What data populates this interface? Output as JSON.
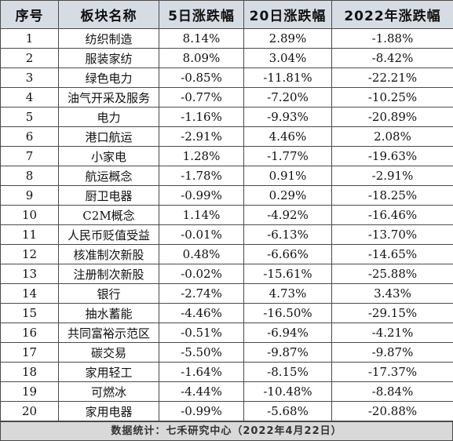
{
  "table": {
    "headers": [
      "序号",
      "板块名称",
      "5日涨跌幅",
      "20日涨跌幅",
      "2022年涨跌幅"
    ],
    "rows": [
      [
        "1",
        "纺织制造",
        "8.14%",
        "2.89%",
        "-1.88%"
      ],
      [
        "2",
        "服装家纺",
        "8.09%",
        "3.04%",
        "-8.42%"
      ],
      [
        "3",
        "绿色电力",
        "-0.85%",
        "-11.81%",
        "-22.21%"
      ],
      [
        "4",
        "油气开采及服务",
        "-0.77%",
        "-7.20%",
        "-10.25%"
      ],
      [
        "5",
        "电力",
        "-1.16%",
        "-9.93%",
        "-20.89%"
      ],
      [
        "6",
        "港口航运",
        "-2.91%",
        "4.46%",
        "2.08%"
      ],
      [
        "7",
        "小家电",
        "1.28%",
        "-1.77%",
        "-19.63%"
      ],
      [
        "8",
        "航运概念",
        "-1.78%",
        "0.91%",
        "-2.91%"
      ],
      [
        "9",
        "厨卫电器",
        "-0.99%",
        "0.29%",
        "-18.25%"
      ],
      [
        "10",
        "C2M概念",
        "1.14%",
        "-4.92%",
        "-16.46%"
      ],
      [
        "11",
        "人民币贬值受益",
        "-0.01%",
        "-6.13%",
        "-13.70%"
      ],
      [
        "12",
        "核准制次新股",
        "0.48%",
        "-6.66%",
        "-14.65%"
      ],
      [
        "13",
        "注册制次新股",
        "-0.02%",
        "-15.61%",
        "-25.88%"
      ],
      [
        "14",
        "银行",
        "-2.74%",
        "4.73%",
        "3.43%"
      ],
      [
        "15",
        "抽水蓄能",
        "-4.46%",
        "-16.50%",
        "-29.15%"
      ],
      [
        "16",
        "共同富裕示范区",
        "-0.51%",
        "-6.94%",
        "-4.21%"
      ],
      [
        "17",
        "碳交易",
        "-5.50%",
        "-9.87%",
        "-9.87%"
      ],
      [
        "18",
        "家用轻工",
        "-1.64%",
        "-8.15%",
        "-17.37%"
      ],
      [
        "19",
        "可燃冰",
        "-4.44%",
        "-10.48%",
        "-8.84%"
      ],
      [
        "20",
        "家用电器",
        "-0.99%",
        "-5.68%",
        "-20.88%"
      ]
    ]
  },
  "footer": {
    "text": "数据统计：七禾研究中心（2022年4月22日）"
  },
  "colors": {
    "header_bg": "#d6dce4",
    "footer_bg": "#d9d9d9",
    "border": "#4a4a4a"
  }
}
